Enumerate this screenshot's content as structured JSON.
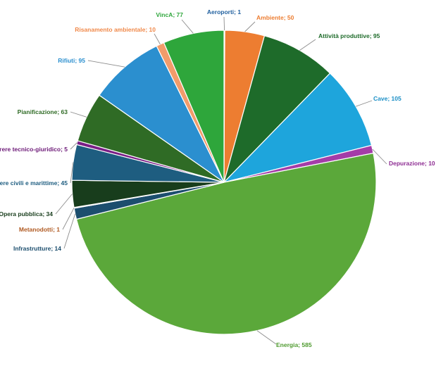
{
  "chart_data": {
    "type": "pie",
    "title": "",
    "slices": [
      {
        "label": "Aeroporti",
        "value": 1,
        "color": "#1f4e79"
      },
      {
        "label": "Ambiente",
        "value": 50,
        "color": "#ed7d31"
      },
      {
        "label": "Attività produttive",
        "value": 95,
        "color": "#1e6b2a"
      },
      {
        "label": "Cave",
        "value": 105,
        "color": "#1ea5dc"
      },
      {
        "label": "Depurazione",
        "value": 10,
        "color": "#a43ca8"
      },
      {
        "label": "Energia",
        "value": 585,
        "color": "#5ba83a"
      },
      {
        "label": "Infrastrutture",
        "value": 14,
        "color": "#1c4e6e"
      },
      {
        "label": "Metanodotti",
        "value": 1,
        "color": "#a0522d"
      },
      {
        "label": "Opera pubblica",
        "value": 34,
        "color": "#183d1c"
      },
      {
        "label": "Opere civili e marittime",
        "value": 45,
        "color": "#1e5d80"
      },
      {
        "label": "Parere tecnico-giuridico",
        "value": 5,
        "color": "#7a1f86"
      },
      {
        "label": "Pianificazione",
        "value": 63,
        "color": "#2f6b25"
      },
      {
        "label": "Rifiuti",
        "value": 95,
        "color": "#2b8fcf"
      },
      {
        "label": "Risanamento ambientale",
        "value": 10,
        "color": "#f29c6b"
      },
      {
        "label": "VincA",
        "value": 77,
        "color": "#2ea63b"
      }
    ],
    "label_colors": {
      "Aeroporti": "#1f5f9e",
      "Ambiente": "#ed7d31",
      "Attività produttive": "#1e6b2a",
      "Cave": "#1b8fc6",
      "Depurazione": "#8e2d93",
      "Energia": "#4e9a2e",
      "Infrastrutture": "#1c4e6e",
      "Metanodotti": "#b05a22",
      "Opera pubblica": "#183d1c",
      "Opere civili e marittime": "#1e5d80",
      "Parere tecnico-giuridico": "#6d1a78",
      "Pianificazione": "#2f6b25",
      "Rifiuti": "#2b8fcf",
      "Risanamento ambientale": "#f0894a",
      "VincA": "#2ea63b"
    },
    "label_separator": "; "
  }
}
